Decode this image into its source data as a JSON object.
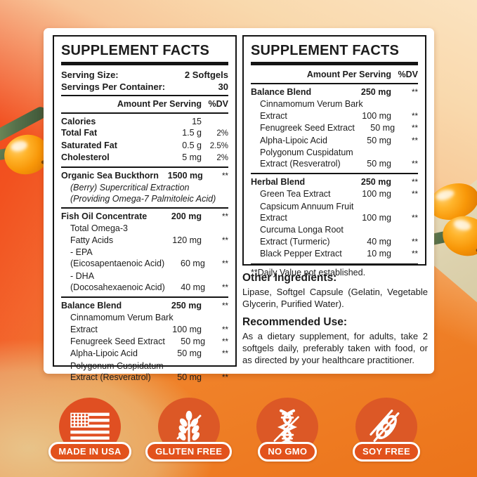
{
  "left_panel": {
    "title": "SUPPLEMENT FACTS",
    "serving_info": [
      {
        "label": "Serving Size:",
        "value": "2 Softgels"
      },
      {
        "label": "Servings Per Container:",
        "value": "30"
      }
    ],
    "columns": {
      "amount": "Amount Per Serving",
      "dv": "%DV"
    },
    "sections": [
      {
        "rows": [
          {
            "name": "Calories",
            "bold": true,
            "amount": "15",
            "dv": ""
          },
          {
            "name": "Total Fat",
            "bold": true,
            "amount": "1.5 g",
            "dv": "2%"
          },
          {
            "name": "Saturated Fat",
            "bold": true,
            "amount": "0.5 g",
            "dv": "2.5%"
          },
          {
            "name": "Cholesterol",
            "bold": true,
            "amount": "5 mg",
            "dv": "2%"
          }
        ]
      },
      {
        "rows": [
          {
            "name": "Organic Sea Buckthorn",
            "bold": true,
            "amount": "1500 mg",
            "bold_amount": true,
            "dv": "**"
          },
          {
            "name": "(Berry) Supercritical Extraction",
            "indent": true,
            "italic": true,
            "amount": "",
            "dv": ""
          },
          {
            "name": "(Providing Omega-7 Palmitoleic Acid)",
            "indent": true,
            "italic": true,
            "amount": "",
            "dv": ""
          }
        ]
      },
      {
        "rows": [
          {
            "name": "Fish Oil Concentrate",
            "bold": true,
            "amount": "200 mg",
            "bold_amount": true,
            "dv": "**"
          },
          {
            "name": "Total Omega-3",
            "indent": true,
            "amount": "",
            "dv": ""
          },
          {
            "name": "Fatty Acids",
            "indent": true,
            "amount": "120 mg",
            "dv": "**"
          },
          {
            "name": "- EPA",
            "indent": true,
            "amount": "",
            "dv": ""
          },
          {
            "name": "(Eicosapentaenoic Acid)",
            "indent": true,
            "amount": "60 mg",
            "dv": "**"
          },
          {
            "name": "- DHA",
            "indent": true,
            "amount": "",
            "dv": ""
          },
          {
            "name": "(Docosahexaenoic Acid)",
            "indent": true,
            "amount": "40 mg",
            "dv": "**"
          }
        ]
      },
      {
        "rows": [
          {
            "name": "Balance Blend",
            "bold": true,
            "amount": "250 mg",
            "bold_amount": true,
            "dv": "**"
          },
          {
            "name": "Cinnamomum Verum Bark",
            "indent": true,
            "amount": "",
            "dv": ""
          },
          {
            "name": "Extract",
            "indent": true,
            "amount": "100 mg",
            "dv": "**"
          },
          {
            "name": "Fenugreek Seed Extract",
            "indent": true,
            "amount": "50 mg",
            "dv": "**"
          },
          {
            "name": "Alpha-Lipoic Acid",
            "indent": true,
            "amount": "50 mg",
            "dv": "**"
          },
          {
            "name": "Polygonum Cuspidatum",
            "indent": true,
            "amount": "",
            "dv": ""
          },
          {
            "name": "Extract (Resveratrol)",
            "indent": true,
            "amount": "50 mg",
            "dv": "**"
          }
        ]
      }
    ]
  },
  "right_panel": {
    "title": "SUPPLEMENT FACTS",
    "columns": {
      "amount": "Amount Per Serving",
      "dv": "%DV"
    },
    "sections": [
      {
        "rows": [
          {
            "name": "Balance Blend",
            "bold": true,
            "amount": "250 mg",
            "bold_amount": true,
            "dv": "**"
          },
          {
            "name": "Cinnamomum Verum Bark",
            "indent": true,
            "amount": "",
            "dv": ""
          },
          {
            "name": "Extract",
            "indent": true,
            "amount": "100 mg",
            "dv": "**"
          },
          {
            "name": "Fenugreek Seed Extract",
            "indent": true,
            "amount": "50 mg",
            "dv": "**"
          },
          {
            "name": "Alpha-Lipoic Acid",
            "indent": true,
            "amount": "50 mg",
            "dv": "**"
          },
          {
            "name": "Polygonum Cuspidatum",
            "indent": true,
            "amount": "",
            "dv": ""
          },
          {
            "name": "Extract (Resveratrol)",
            "indent": true,
            "amount": "50 mg",
            "dv": "**"
          }
        ]
      },
      {
        "rows": [
          {
            "name": "Herbal Blend",
            "bold": true,
            "amount": "250 mg",
            "bold_amount": true,
            "dv": "**"
          },
          {
            "name": "Green Tea Extract",
            "indent": true,
            "amount": "100 mg",
            "dv": "**"
          },
          {
            "name": "Capsicum Annuum Fruit",
            "indent": true,
            "amount": "",
            "dv": ""
          },
          {
            "name": "Extract",
            "indent": true,
            "amount": "100 mg",
            "dv": "**"
          },
          {
            "name": "Curcuma Longa Root",
            "indent": true,
            "amount": "",
            "dv": ""
          },
          {
            "name": "Extract (Turmeric)",
            "indent": true,
            "amount": "40 mg",
            "dv": "**"
          },
          {
            "name": "Black Pepper Extract",
            "indent": true,
            "amount": "10 mg",
            "dv": "**"
          }
        ]
      }
    ],
    "footnote": "**Daily Value not established."
  },
  "info": {
    "other_ingredients_heading": "Other Ingredients:",
    "other_ingredients_body": "Lipase, Softgel Capsule (Gelatin, Vegetable Glycerin, Purified Water).",
    "recommended_use_heading": "Recommended Use:",
    "recommended_use_body": "As a dietary supplement, for adults, take 2 softgels daily, preferably taken with food, or as directed by your healthcare practitioner."
  },
  "badges": [
    {
      "label": "MADE IN USA",
      "icon": "usa-flag-icon"
    },
    {
      "label": "GLUTEN FREE",
      "icon": "wheat-icon"
    },
    {
      "label": "NO GMO",
      "icon": "dna-icon"
    },
    {
      "label": "SOY FREE",
      "icon": "soybean-icon"
    }
  ],
  "colors": {
    "background_orange": "#f0812c",
    "background_red_orange": "#f14a20",
    "background_peach": "#fbe3c0",
    "badge_circle": "#dc5826",
    "badge_pill": "#e2521c",
    "panel_border": "#141414",
    "text": "#1c1c1c"
  }
}
